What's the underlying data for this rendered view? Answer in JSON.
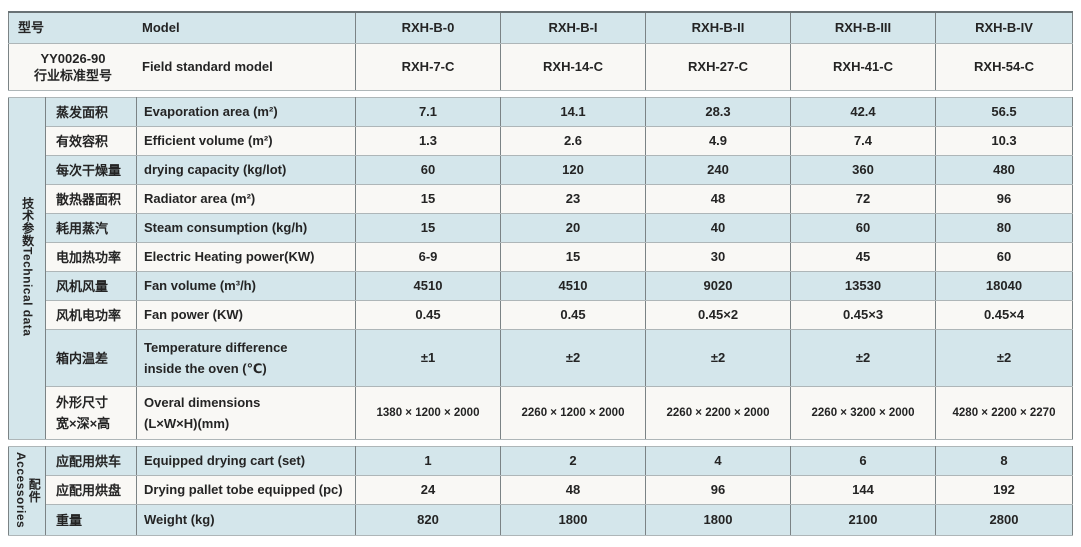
{
  "doc": {
    "title": "RXH series drying oven technical specification table"
  },
  "colors": {
    "row_blue": "#d4e6eb",
    "row_white": "#f9f8f5",
    "line_vertical": "#7b8385",
    "line_horizontal": "#aeb6b8"
  },
  "header": {
    "model_cn": "型号",
    "model_en": "Model",
    "models": [
      "RXH-B-0",
      "RXH-B-I",
      "RXH-B-II",
      "RXH-B-III",
      "RXH-B-IV"
    ],
    "standard_cn_line1": "YY0026-90",
    "standard_cn_line2": "行业标准型号",
    "standard_en": "Field standard model",
    "standard_models": [
      "RXH-7-C",
      "RXH-14-C",
      "RXH-27-C",
      "RXH-41-C",
      "RXH-54-C"
    ]
  },
  "technical": {
    "group_cn": "技术参数",
    "group_en": "Technical data",
    "rows": [
      {
        "cn": "蒸发面积",
        "en": "Evaporation area (m²)",
        "values": [
          "7.1",
          "14.1",
          "28.3",
          "42.4",
          "56.5"
        ]
      },
      {
        "cn": "有效容积",
        "en": "Efficient volume (m²)",
        "values": [
          "1.3",
          "2.6",
          "4.9",
          "7.4",
          "10.3"
        ]
      },
      {
        "cn": "每次干燥量",
        "en": "drying capacity (kg/lot)",
        "values": [
          "60",
          "120",
          "240",
          "360",
          "480"
        ]
      },
      {
        "cn": "散热器面积",
        "en": "Radiator area (m²)",
        "values": [
          "15",
          "23",
          "48",
          "72",
          "96"
        ]
      },
      {
        "cn": "耗用蒸汽",
        "en": "Steam consumption (kg/h)",
        "values": [
          "15",
          "20",
          "40",
          "60",
          "80"
        ]
      },
      {
        "cn": "电加热功率",
        "en": "Electric Heating power(KW)",
        "values": [
          "6-9",
          "15",
          "30",
          "45",
          "60"
        ]
      },
      {
        "cn": "风机风量",
        "en": "Fan volume (m³/h)",
        "values": [
          "4510",
          "4510",
          "9020",
          "13530",
          "18040"
        ]
      },
      {
        "cn": "风机电功率",
        "en": "Fan power (KW)",
        "values": [
          "0.45",
          "0.45",
          "0.45×2",
          "0.45×3",
          "0.45×4"
        ]
      },
      {
        "cn": "箱内温差",
        "en": "Temperature difference",
        "en2": "inside the oven (℃)",
        "values": [
          "±1",
          "±2",
          "±2",
          "±2",
          "±2"
        ]
      },
      {
        "cn": "外形尺寸",
        "cn2": "宽×深×高",
        "en": "Overal dimensions",
        "en2": "(L×W×H)(mm)",
        "values": [
          "1380 × 1200 × 2000",
          "2260 × 1200 × 2000",
          "2260 × 2200 × 2000",
          "2260 × 3200 × 2000",
          "4280 × 2200 × 2270"
        ]
      }
    ]
  },
  "accessories": {
    "group_cn": "配件",
    "group_en": "Accessories",
    "rows": [
      {
        "cn": "应配用烘车",
        "en": "Equipped drying cart (set)",
        "values": [
          "1",
          "2",
          "4",
          "6",
          "8"
        ]
      },
      {
        "cn": "应配用烘盘",
        "en": "Drying pallet tobe equipped (pc)",
        "values": [
          "24",
          "48",
          "96",
          "144",
          "192"
        ]
      },
      {
        "cn": "重量",
        "en": "Weight (kg)",
        "values": [
          "820",
          "1800",
          "1800",
          "2100",
          "2800"
        ]
      }
    ]
  }
}
